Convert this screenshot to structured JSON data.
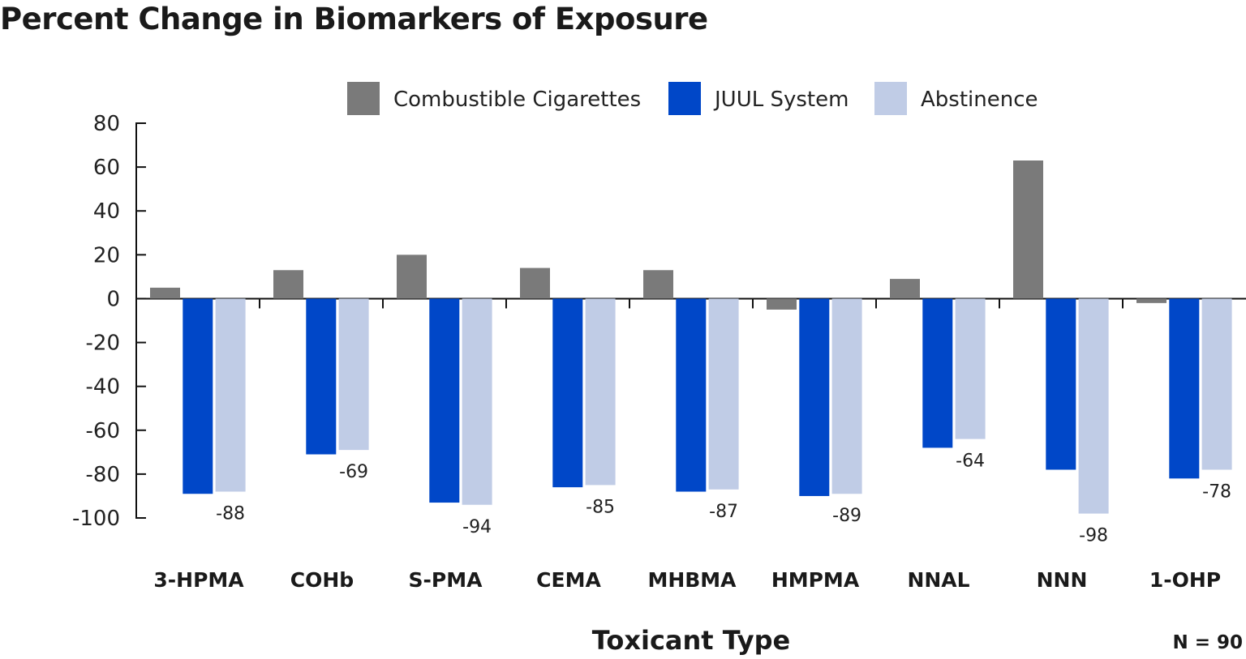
{
  "title": "Percent Change in Biomarkers of Exposure",
  "colors": {
    "combustible": "#7a7a7a",
    "juul": "#0047c8",
    "abstinence": "#c0cce6",
    "axis": "#111111"
  },
  "chart_data": {
    "type": "bar",
    "title": "Percent Change in Biomarkers of Exposure",
    "xlabel": "Toxicant Type",
    "ylabel": "",
    "ylim": [
      -100,
      80
    ],
    "yticks": [
      80,
      60,
      40,
      20,
      0,
      -20,
      -40,
      -60,
      -80,
      -100
    ],
    "grid": false,
    "legend_position": "top",
    "categories": [
      "3-HPMA",
      "COHb",
      "S-PMA",
      "CEMA",
      "MHBMA",
      "HMPMA",
      "NNAL",
      "NNN",
      "1-OHP"
    ],
    "series": [
      {
        "name": "Combustible Cigarettes",
        "color": "#7a7a7a",
        "values": [
          5,
          13,
          20,
          14,
          13,
          -5,
          9,
          63,
          -2
        ]
      },
      {
        "name": "JUUL System",
        "color": "#0047c8",
        "values": [
          -89,
          -71,
          -93,
          -86,
          -88,
          -90,
          -68,
          -78,
          -82
        ]
      },
      {
        "name": "Abstinence",
        "color": "#c0cce6",
        "values": [
          -88,
          -69,
          -94,
          -85,
          -87,
          -89,
          -64,
          -98,
          -78
        ],
        "data_labels": [
          "-88",
          "-69",
          "-94",
          "-85",
          "-87",
          "-89",
          "-64",
          "-98",
          "-78"
        ]
      }
    ],
    "note": "N = 90"
  }
}
